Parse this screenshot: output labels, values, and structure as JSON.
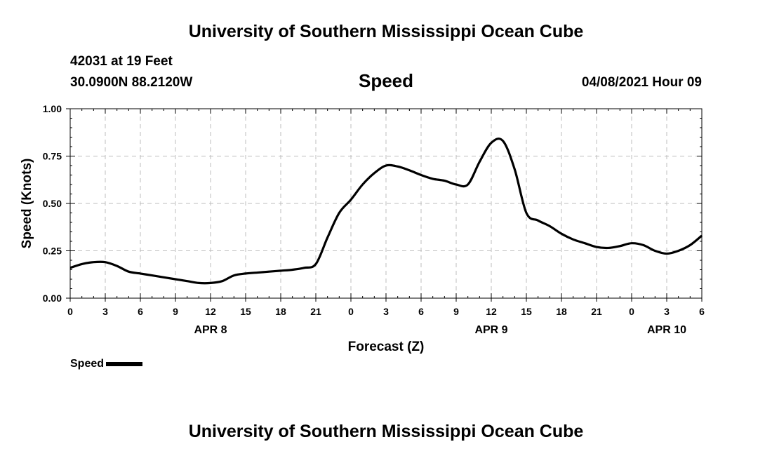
{
  "header": {
    "title": "University of Southern Mississippi Ocean Cube",
    "station": "42031 at 19 Feet",
    "coords": "30.0900N  88.2120W",
    "variable": "Speed",
    "datetime": "04/08/2021 Hour 09",
    "footer_title": "University of Southern Mississippi Ocean Cube"
  },
  "legend": {
    "label": "Speed"
  },
  "chart_data": {
    "type": "line",
    "title": "Speed",
    "xlabel": "Forecast (Z)",
    "ylabel": "Speed (Knots)",
    "xlim": [
      0,
      54
    ],
    "ylim": [
      0,
      1.0
    ],
    "yticks": [
      0.0,
      0.25,
      0.5,
      0.75,
      1.0
    ],
    "ytick_labels": [
      "0.00",
      "0.25",
      "0.50",
      "0.75",
      "1.00"
    ],
    "xticks": [
      0,
      3,
      6,
      9,
      12,
      15,
      18,
      21,
      24,
      27,
      30,
      33,
      36,
      39,
      42,
      45,
      48,
      51,
      54
    ],
    "xtick_labels": [
      "0",
      "3",
      "6",
      "9",
      "12",
      "15",
      "18",
      "21",
      "0",
      "3",
      "6",
      "9",
      "12",
      "15",
      "18",
      "21",
      "0",
      "3",
      "6"
    ],
    "day_labels": [
      {
        "x": 12,
        "label": "APR 8"
      },
      {
        "x": 36,
        "label": "APR 9"
      },
      {
        "x": 51,
        "label": "APR 10"
      }
    ],
    "grid": true,
    "legend_position": "bottom-left",
    "line_color": "#000000",
    "series": [
      {
        "name": "Speed",
        "x": [
          0,
          1,
          2,
          3,
          4,
          5,
          6,
          7,
          8,
          9,
          10,
          11,
          12,
          13,
          14,
          15,
          16,
          17,
          18,
          19,
          20,
          21,
          22,
          23,
          24,
          25,
          26,
          27,
          28,
          29,
          30,
          31,
          32,
          33,
          34,
          35,
          36,
          37,
          38,
          39,
          40,
          41,
          42,
          43,
          44,
          45,
          46,
          47,
          48,
          49,
          50,
          51,
          52,
          53,
          54
        ],
        "values": [
          0.16,
          0.18,
          0.19,
          0.19,
          0.17,
          0.14,
          0.13,
          0.12,
          0.11,
          0.1,
          0.09,
          0.08,
          0.08,
          0.09,
          0.12,
          0.13,
          0.135,
          0.14,
          0.145,
          0.15,
          0.16,
          0.18,
          0.32,
          0.45,
          0.52,
          0.6,
          0.66,
          0.7,
          0.695,
          0.675,
          0.65,
          0.63,
          0.62,
          0.6,
          0.6,
          0.72,
          0.82,
          0.83,
          0.68,
          0.45,
          0.41,
          0.38,
          0.34,
          0.31,
          0.29,
          0.27,
          0.265,
          0.275,
          0.29,
          0.28,
          0.25,
          0.235,
          0.25,
          0.28,
          0.33
        ]
      }
    ]
  }
}
